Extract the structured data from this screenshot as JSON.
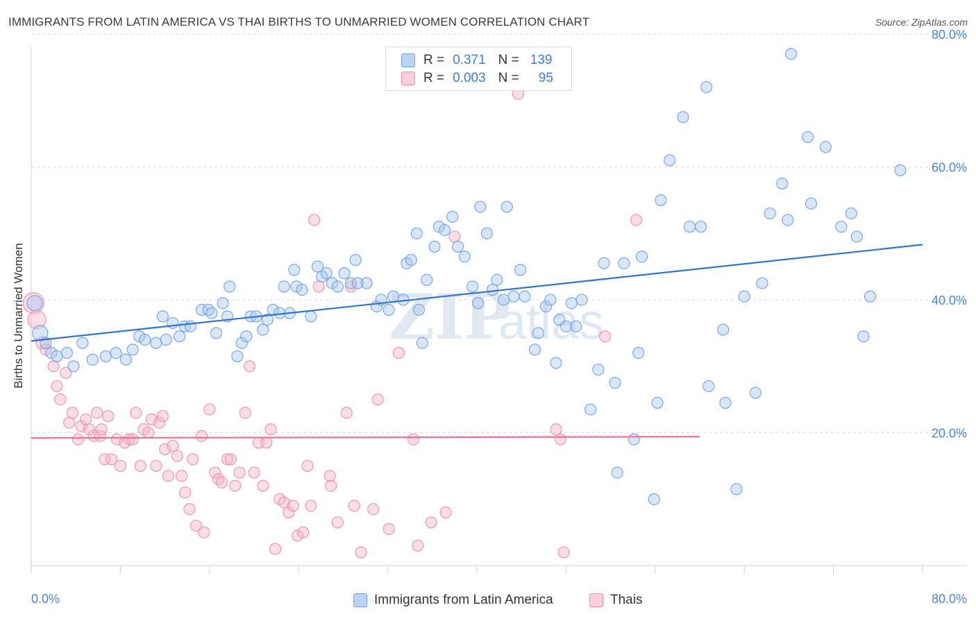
{
  "header": {
    "title": "IMMIGRANTS FROM LATIN AMERICA VS THAI BIRTHS TO UNMARRIED WOMEN CORRELATION CHART",
    "source": "Source: ZipAtlas.com"
  },
  "watermark": {
    "zip": "ZIP",
    "atlas": "atlas"
  },
  "legend": {
    "rows": [
      {
        "r_label": "R =",
        "r_value": "0.371",
        "n_label": "N =",
        "n_value": "139",
        "color": "#a9c8f0"
      },
      {
        "r_label": "R =",
        "r_value": "0.003",
        "n_label": "N =",
        "n_value": "95",
        "color": "#f4b6c8"
      }
    ]
  },
  "bottom_legend": {
    "items": [
      {
        "label": "Immigrants from Latin America",
        "color": "#a9c8f0"
      },
      {
        "label": "Thais",
        "color": "#f4b6c8"
      }
    ]
  },
  "chart_data": {
    "type": "scatter",
    "title": "IMMIGRANTS FROM LATIN AMERICA VS THAI BIRTHS TO UNMARRIED WOMEN CORRELATION CHART",
    "xlabel": "",
    "ylabel": "Births to Unmarried Women",
    "xlim": [
      0,
      80
    ],
    "ylim": [
      0,
      82
    ],
    "x_tick_labels": [
      "0.0%",
      "80.0%"
    ],
    "y_ticks": [
      20,
      40,
      60,
      80
    ],
    "y_tick_labels": [
      "20.0%",
      "40.0%",
      "60.0%",
      "80.0%"
    ],
    "grid": true,
    "legend_position": "top-center",
    "series": [
      {
        "name": "Immigrants from Latin America",
        "color": "#6fa1e6",
        "fill": "#a9c8f0",
        "line_color": "#2f74d0",
        "trend": {
          "x": [
            0,
            80
          ],
          "y": [
            33.8,
            48.3
          ]
        },
        "points": [
          [
            0.3,
            39.5
          ],
          [
            0.8,
            35
          ],
          [
            1.3,
            33.5
          ],
          [
            1.8,
            32
          ],
          [
            2.3,
            31.5
          ],
          [
            3.2,
            32
          ],
          [
            3.8,
            30
          ],
          [
            4.6,
            33.5
          ],
          [
            5.5,
            31
          ],
          [
            6.7,
            31.5
          ],
          [
            7.6,
            32
          ],
          [
            8.5,
            31
          ],
          [
            9.1,
            32.5
          ],
          [
            9.7,
            34.5
          ],
          [
            10.2,
            34
          ],
          [
            11.2,
            33.5
          ],
          [
            11.8,
            37.5
          ],
          [
            12.1,
            34
          ],
          [
            12.7,
            36.5
          ],
          [
            13.3,
            34.5
          ],
          [
            13.8,
            36
          ],
          [
            14.3,
            36
          ],
          [
            15.3,
            38.5
          ],
          [
            15.9,
            38.5
          ],
          [
            16.2,
            38
          ],
          [
            16.6,
            35
          ],
          [
            17.2,
            39.5
          ],
          [
            17.6,
            37.5
          ],
          [
            17.8,
            42
          ],
          [
            18.5,
            31.5
          ],
          [
            18.9,
            33.5
          ],
          [
            19.3,
            34.5
          ],
          [
            19.7,
            37.5
          ],
          [
            20.2,
            37.5
          ],
          [
            20.8,
            35.5
          ],
          [
            21.2,
            37
          ],
          [
            21.7,
            38.5
          ],
          [
            22.3,
            38
          ],
          [
            22.7,
            42
          ],
          [
            23.2,
            38
          ],
          [
            23.6,
            44.5
          ],
          [
            23.8,
            42
          ],
          [
            24.3,
            41.5
          ],
          [
            25.1,
            37.5
          ],
          [
            25.7,
            45
          ],
          [
            26.1,
            43.5
          ],
          [
            26.5,
            44
          ],
          [
            27,
            42.5
          ],
          [
            27.5,
            42
          ],
          [
            28.1,
            44
          ],
          [
            28.7,
            42.5
          ],
          [
            29.1,
            46
          ],
          [
            29.3,
            42.5
          ],
          [
            30.1,
            42.5
          ],
          [
            31,
            39
          ],
          [
            31.4,
            40
          ],
          [
            32.1,
            38.5
          ],
          [
            32.5,
            40.5
          ],
          [
            33.4,
            40
          ],
          [
            33.7,
            45.5
          ],
          [
            34.1,
            46
          ],
          [
            34.6,
            50
          ],
          [
            34.8,
            38.5
          ],
          [
            35.1,
            33.5
          ],
          [
            35.5,
            43
          ],
          [
            36.2,
            48
          ],
          [
            36.6,
            51
          ],
          [
            37.1,
            50.5
          ],
          [
            37.8,
            52.5
          ],
          [
            38.3,
            48
          ],
          [
            38.9,
            46.5
          ],
          [
            39.6,
            42
          ],
          [
            40.1,
            39.5
          ],
          [
            40.3,
            54
          ],
          [
            40.9,
            50
          ],
          [
            41.4,
            41.5
          ],
          [
            41.8,
            43
          ],
          [
            42.4,
            40
          ],
          [
            42.7,
            54
          ],
          [
            43.3,
            40.5
          ],
          [
            43.9,
            44.5
          ],
          [
            44.3,
            40.5
          ],
          [
            45.2,
            32.5
          ],
          [
            45.5,
            35
          ],
          [
            46.2,
            39
          ],
          [
            46.6,
            40
          ],
          [
            47.1,
            30.5
          ],
          [
            47.4,
            37
          ],
          [
            48,
            36
          ],
          [
            48.5,
            39.5
          ],
          [
            48.9,
            36
          ],
          [
            49.4,
            40
          ],
          [
            50.2,
            23.5
          ],
          [
            50.9,
            29.5
          ],
          [
            51.4,
            45.5
          ],
          [
            52.4,
            27.5
          ],
          [
            52.6,
            14
          ],
          [
            53.2,
            45.5
          ],
          [
            54.1,
            19
          ],
          [
            54.5,
            32
          ],
          [
            54.8,
            46.5
          ],
          [
            55.9,
            10
          ],
          [
            56.2,
            24.5
          ],
          [
            56.5,
            55
          ],
          [
            57.3,
            61
          ],
          [
            58.5,
            67.5
          ],
          [
            59.1,
            51
          ],
          [
            60.1,
            51
          ],
          [
            60.6,
            72
          ],
          [
            60.8,
            27
          ],
          [
            62.1,
            35.5
          ],
          [
            62.3,
            24.5
          ],
          [
            63.3,
            11.5
          ],
          [
            64,
            40.5
          ],
          [
            65,
            26
          ],
          [
            65.6,
            42.5
          ],
          [
            66.3,
            53
          ],
          [
            67.4,
            57.5
          ],
          [
            67.9,
            52
          ],
          [
            68.2,
            77
          ],
          [
            69.7,
            64.5
          ],
          [
            70,
            54.5
          ],
          [
            71.3,
            63
          ],
          [
            72.7,
            51
          ],
          [
            73.6,
            53
          ],
          [
            74.1,
            49.5
          ],
          [
            74.7,
            34.5
          ],
          [
            75.3,
            40.5
          ],
          [
            78,
            59.5
          ]
        ]
      },
      {
        "name": "Thais",
        "color": "#f08fab",
        "fill": "#f4b6c8",
        "line_color": "#ef6f95",
        "trend": {
          "x": [
            0,
            60
          ],
          "y": [
            19.2,
            19.4
          ]
        },
        "points": [
          [
            0.2,
            39.5
          ],
          [
            0.5,
            37
          ],
          [
            1,
            33.5
          ],
          [
            1.3,
            32.5
          ],
          [
            2,
            30
          ],
          [
            2.3,
            27
          ],
          [
            2.6,
            25
          ],
          [
            3.1,
            29
          ],
          [
            3.4,
            21.5
          ],
          [
            3.7,
            23
          ],
          [
            4.2,
            19
          ],
          [
            4.5,
            21
          ],
          [
            4.9,
            22
          ],
          [
            5.2,
            20.5
          ],
          [
            5.6,
            19.5
          ],
          [
            5.9,
            23
          ],
          [
            6.2,
            19.5
          ],
          [
            6.3,
            20.5
          ],
          [
            6.6,
            16
          ],
          [
            6.9,
            22.5
          ],
          [
            7.2,
            16
          ],
          [
            7.7,
            19
          ],
          [
            8,
            15
          ],
          [
            8.4,
            18.5
          ],
          [
            8.8,
            19
          ],
          [
            9.1,
            19
          ],
          [
            9.4,
            23
          ],
          [
            9.8,
            15
          ],
          [
            10.1,
            20.5
          ],
          [
            10.5,
            20
          ],
          [
            10.8,
            22
          ],
          [
            11.2,
            15
          ],
          [
            11.5,
            21.5
          ],
          [
            11.8,
            22.5
          ],
          [
            12,
            17.5
          ],
          [
            12.3,
            13.5
          ],
          [
            12.7,
            18
          ],
          [
            13.1,
            16.5
          ],
          [
            13.5,
            13.5
          ],
          [
            13.8,
            11
          ],
          [
            14.2,
            8.5
          ],
          [
            14.5,
            16
          ],
          [
            14.8,
            6
          ],
          [
            15.3,
            19.5
          ],
          [
            15.5,
            5
          ],
          [
            16,
            23.5
          ],
          [
            16.5,
            14
          ],
          [
            16.8,
            13
          ],
          [
            17.1,
            12.5
          ],
          [
            17.6,
            16
          ],
          [
            17.9,
            16
          ],
          [
            18.3,
            12
          ],
          [
            18.7,
            14
          ],
          [
            19.2,
            23
          ],
          [
            19.6,
            30
          ],
          [
            20,
            14
          ],
          [
            20.4,
            18.5
          ],
          [
            20.8,
            12
          ],
          [
            21.1,
            18.5
          ],
          [
            21.5,
            20.5
          ],
          [
            21.9,
            2.5
          ],
          [
            22.3,
            10
          ],
          [
            22.7,
            9.5
          ],
          [
            23.1,
            8
          ],
          [
            23.5,
            9
          ],
          [
            23.9,
            4.5
          ],
          [
            24.4,
            5
          ],
          [
            24.8,
            15
          ],
          [
            25.1,
            9
          ],
          [
            25.4,
            52
          ],
          [
            25.8,
            42
          ],
          [
            26.8,
            13.5
          ],
          [
            26.9,
            12
          ],
          [
            27.5,
            6.5
          ],
          [
            28.3,
            23
          ],
          [
            28.7,
            42
          ],
          [
            29,
            9
          ],
          [
            29.6,
            2
          ],
          [
            30.7,
            8.5
          ],
          [
            31.1,
            25
          ],
          [
            32.1,
            5.5
          ],
          [
            33,
            32
          ],
          [
            34.3,
            19
          ],
          [
            34.7,
            3
          ],
          [
            35.9,
            6.5
          ],
          [
            37.2,
            8
          ],
          [
            38,
            49.5
          ],
          [
            43.7,
            71
          ],
          [
            47.1,
            20.5
          ],
          [
            47.5,
            19
          ],
          [
            47.8,
            2
          ],
          [
            51.5,
            34.5
          ],
          [
            54.3,
            52
          ]
        ]
      }
    ]
  }
}
